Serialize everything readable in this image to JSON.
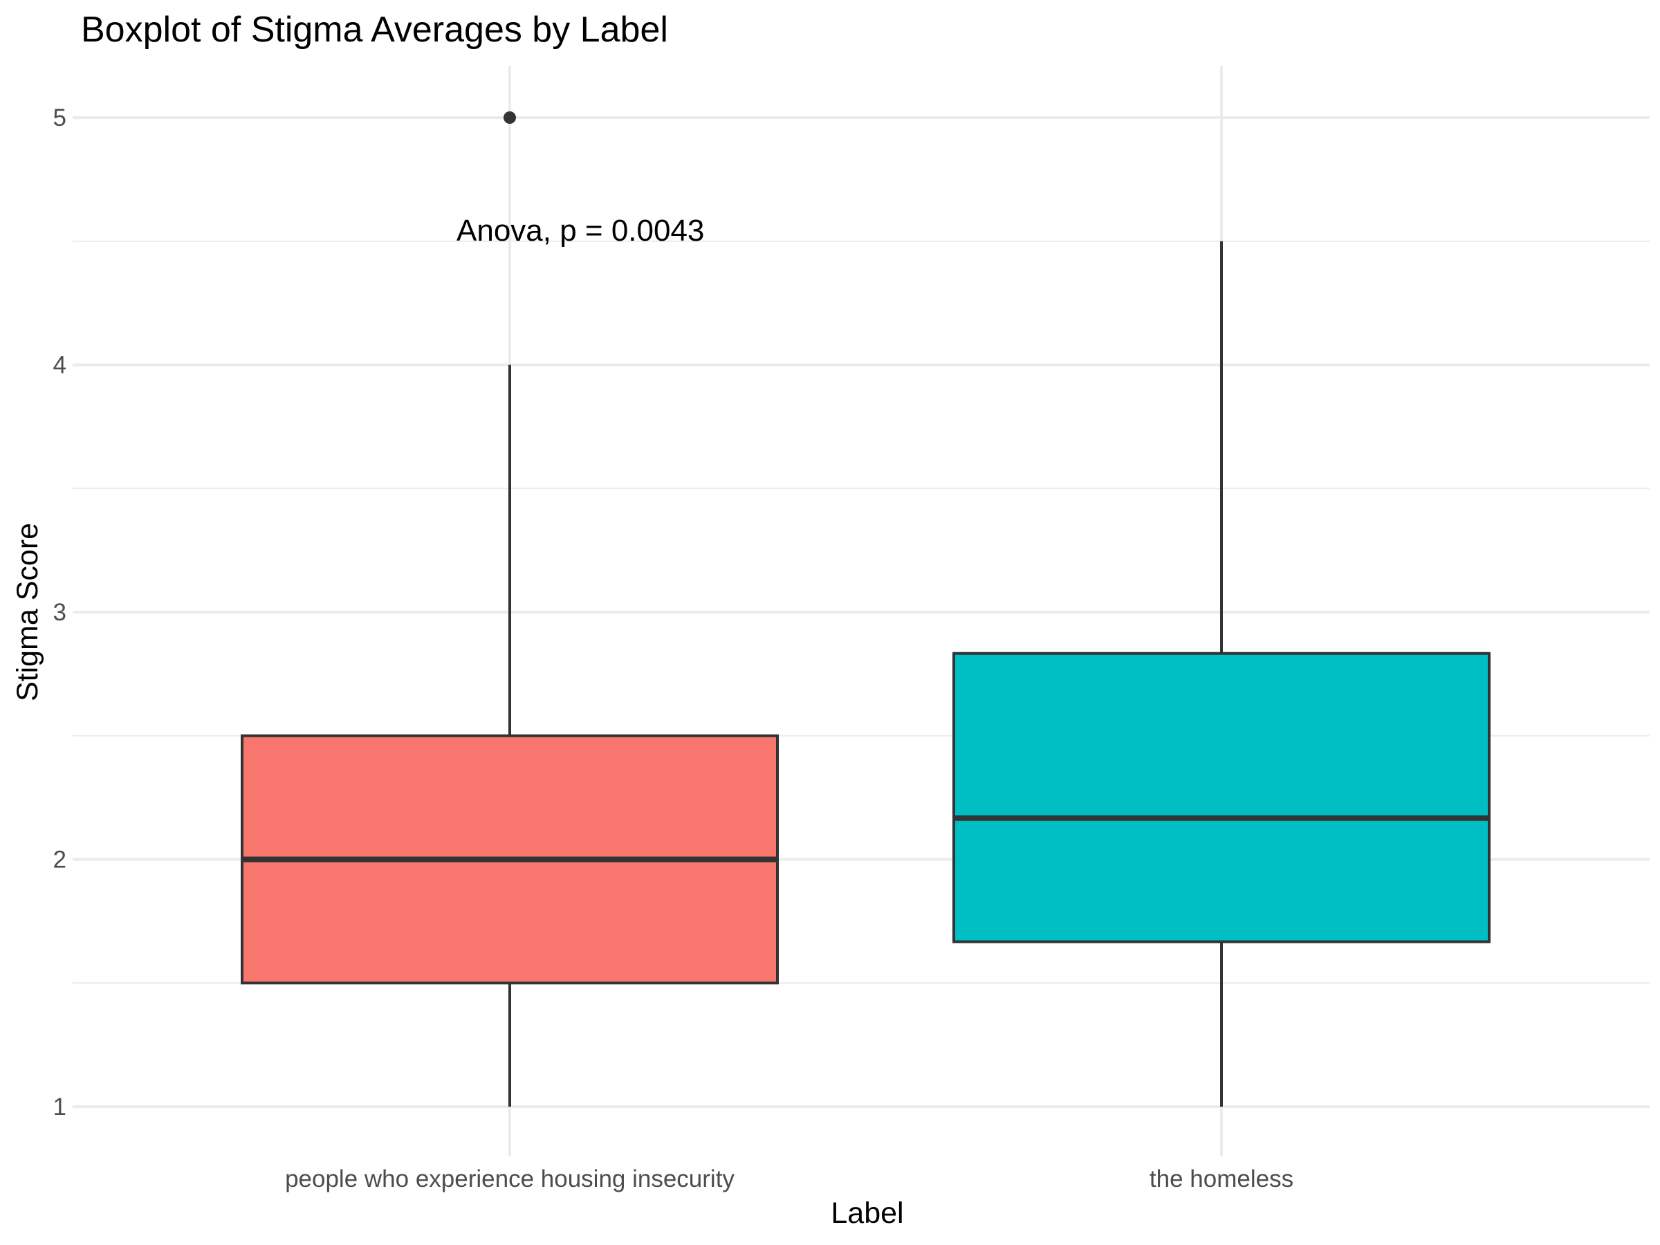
{
  "chart_data": {
    "type": "boxplot",
    "title": "Boxplot of Stigma Averages by Label",
    "xlabel": "Label",
    "ylabel": "Stigma Score",
    "categories": [
      "people who experience housing insecurity",
      "the homeless"
    ],
    "boxes": [
      {
        "category": "people who experience housing insecurity",
        "whisker_low": 1,
        "q1": 1.5,
        "median": 2,
        "q3": 2.5,
        "whisker_high": 4,
        "outliers": [
          5
        ],
        "fill": "#F8766D"
      },
      {
        "category": "the homeless",
        "whisker_low": 1,
        "q1": 1.667,
        "median": 2.167,
        "q3": 2.833,
        "whisker_high": 4.5,
        "outliers": [],
        "fill": "#00BFC4"
      }
    ],
    "y_ticks": [
      1,
      2,
      3,
      4,
      5
    ],
    "ylim": [
      0.8,
      5.2
    ],
    "annotation": "Anova, p = 0.0043",
    "annotation_y": 4.5,
    "grid": true,
    "legend": "none"
  }
}
